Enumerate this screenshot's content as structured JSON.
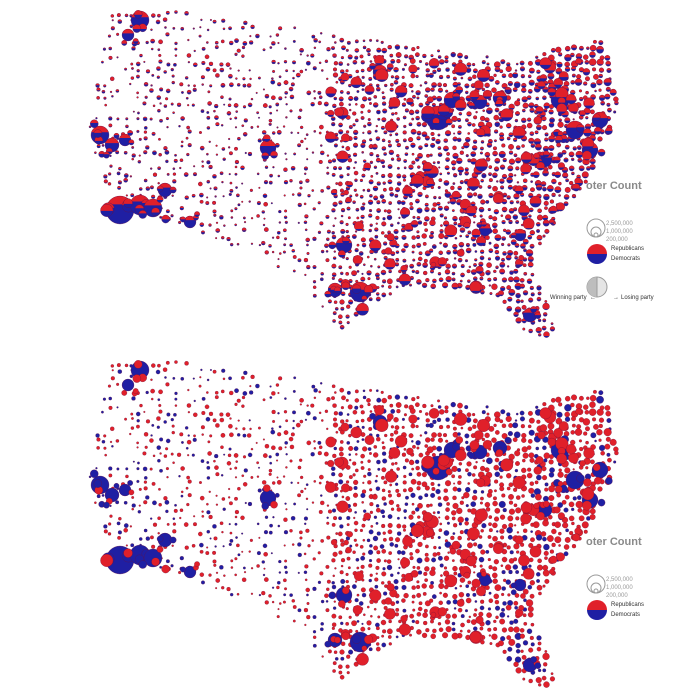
{
  "legend_common": {
    "title": "oter Count",
    "size_values": [
      "2,500,000",
      "1,000,000",
      "200,000"
    ],
    "party_republicans": "Republicans",
    "party_democrats": "Democrats"
  },
  "legend_top": {
    "winning_party": "Winning party",
    "losing_party": "Losing party",
    "arrow_left": "←",
    "arrow_right": "→"
  },
  "colors": {
    "republican": "#e0202a",
    "democrat": "#1f1fa3",
    "outline": "#6a0f3c",
    "legend_grey": "#bdbdbd"
  },
  "map_top": {
    "style": "split-circles",
    "description_of_encoding": "each circle split horizontally into red and blue halves sized by vote share"
  },
  "map_bottom": {
    "style": "winner-colored-circles"
  }
}
